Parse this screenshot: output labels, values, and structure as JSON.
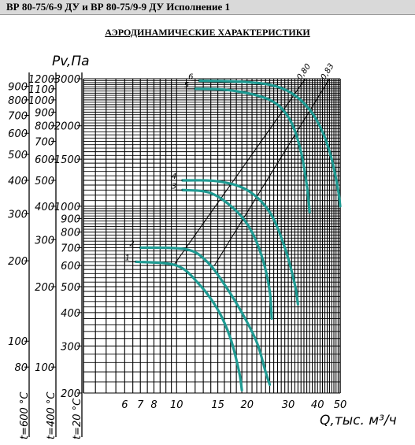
{
  "header": {
    "title": "ВР 80-75/6-9 ДУ и ВР 80-75/9-9 ДУ Исполнение 1"
  },
  "colors": {
    "curve": "#1f9a92",
    "grid": "#000000",
    "header_bg": "#d9d9d9"
  },
  "chart_data": {
    "type": "line",
    "title": "АЭРОДИНАМИЧЕСКИЕ ХАРАКТЕРИСТИКИ",
    "ylabel": "Pv,Па",
    "xlabel": "Q,тыс. м³/ч",
    "x_scale": "log",
    "y_scale": "log",
    "xlim": [
      4,
      50
    ],
    "ylim": [
      200,
      3000
    ],
    "x_ticks": [
      {
        "value": 5,
        "label": ""
      },
      {
        "value": 6,
        "label": "6"
      },
      {
        "value": 7,
        "label": "7"
      },
      {
        "value": 8,
        "label": "8"
      },
      {
        "value": 10,
        "label": "10"
      },
      {
        "value": 15,
        "label": "15"
      },
      {
        "value": 20,
        "label": "20"
      },
      {
        "value": 30,
        "label": "30"
      },
      {
        "value": 40,
        "label": "40"
      },
      {
        "value": 50,
        "label": "50"
      }
    ],
    "y_axes": [
      {
        "temperature": "t=20 °C",
        "ticks": [
          200,
          300,
          400,
          500,
          600,
          700,
          800,
          900,
          1000,
          1500,
          2000,
          3000
        ]
      },
      {
        "temperature": "t=400 °C",
        "ticks": [
          100,
          200,
          300,
          400,
          500,
          600,
          700,
          800,
          900,
          1000,
          1100,
          1200
        ]
      },
      {
        "temperature": "t=600 °C",
        "ticks": [
          80,
          100,
          200,
          300,
          400,
          500,
          600,
          700,
          800,
          900
        ]
      }
    ],
    "series": [
      {
        "name": "1",
        "points": [
          [
            6.7,
            620
          ],
          [
            10,
            600
          ],
          [
            12.5,
            510
          ],
          [
            15,
            410
          ],
          [
            17,
            320
          ],
          [
            18.5,
            240
          ],
          [
            19,
            205
          ]
        ]
      },
      {
        "name": "2",
        "points": [
          [
            7,
            700
          ],
          [
            11,
            690
          ],
          [
            13.5,
            620
          ],
          [
            16,
            510
          ],
          [
            19,
            400
          ],
          [
            22,
            310
          ],
          [
            24,
            240
          ],
          [
            25,
            215
          ]
        ]
      },
      {
        "name": "3",
        "points": [
          [
            10.6,
            1150
          ],
          [
            14,
            1120
          ],
          [
            18,
            960
          ],
          [
            21,
            800
          ],
          [
            23.5,
            620
          ],
          [
            25,
            480
          ],
          [
            25.5,
            380
          ]
        ]
      },
      {
        "name": "4",
        "points": [
          [
            10.6,
            1250
          ],
          [
            15,
            1240
          ],
          [
            20,
            1150
          ],
          [
            25,
            950
          ],
          [
            29,
            700
          ],
          [
            32,
            510
          ],
          [
            33,
            430
          ]
        ]
      },
      {
        "name": "5",
        "points": [
          [
            12,
            2750
          ],
          [
            16,
            2730
          ],
          [
            22,
            2600
          ],
          [
            27,
            2400
          ],
          [
            31,
            2050
          ],
          [
            34,
            1600
          ],
          [
            36,
            1200
          ],
          [
            37,
            950
          ]
        ]
      },
      {
        "name": "6",
        "points": [
          [
            12.5,
            2950
          ],
          [
            18,
            2930
          ],
          [
            25,
            2850
          ],
          [
            31,
            2650
          ],
          [
            37,
            2300
          ],
          [
            42,
            1900
          ],
          [
            46,
            1500
          ],
          [
            49,
            1150
          ],
          [
            50,
            1000
          ]
        ]
      }
    ],
    "efficiency_lines": [
      {
        "label": "0,80",
        "points": [
          [
            9.7,
            600
          ],
          [
            35.5,
            3000
          ]
        ]
      },
      {
        "label": "0,83",
        "points": [
          [
            14.5,
            600
          ],
          [
            45,
            3000
          ]
        ]
      }
    ]
  }
}
